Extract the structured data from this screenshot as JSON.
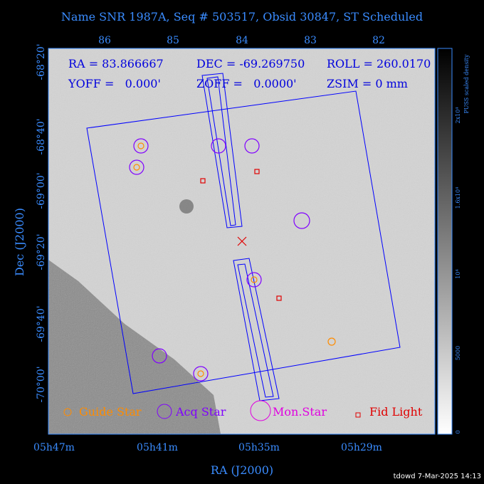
{
  "title": "Name SNR 1987A, Seq # 503517, Obsid 30847, ST Scheduled",
  "header": {
    "ra": "RA = 83.866667",
    "dec": "DEC = -69.269750",
    "roll": "ROLL = 260.0170",
    "yoff": "YOFF =   0.000'",
    "zoff": "ZOFF =   0.0000'",
    "zsim": "ZSIM = 0 mm"
  },
  "top_ticks": [
    "86",
    "85",
    "84",
    "83",
    "82"
  ],
  "bottom_ticks": [
    "05h47m",
    "05h41m",
    "05h35m",
    "05h29m"
  ],
  "left_ticks": [
    "-68°20'",
    "-68°40'",
    "-69°00'",
    "-69°20'",
    "-69°40'",
    "-70°00'"
  ],
  "x_label": "RA (J2000)",
  "y_label": "Dec (J2000)",
  "colorbar": {
    "title": "PUSS scaled density",
    "ticks": [
      "2x10⁴",
      "1.6x10⁴",
      "10⁴",
      "5000",
      "0"
    ]
  },
  "legend": [
    "Guide Star",
    "Acq Star",
    "Mon.Star",
    "Fid Light"
  ],
  "footer": "tdowd  7-Mar-2025 14:13"
}
